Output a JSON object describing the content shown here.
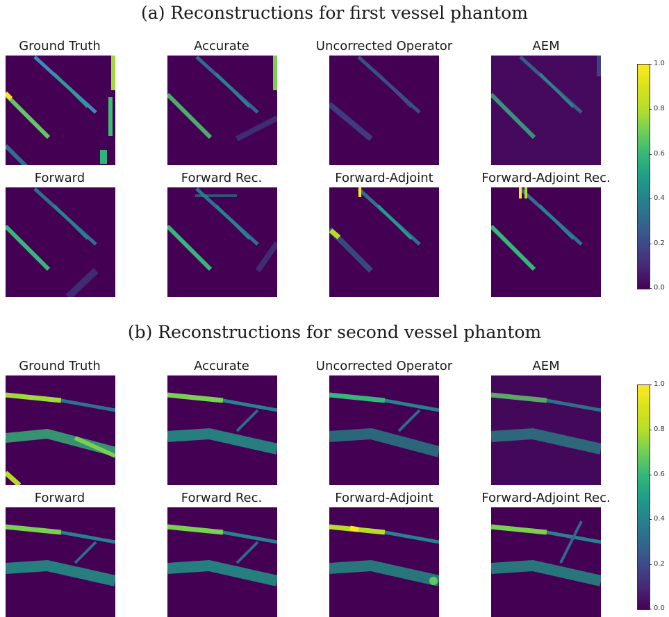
{
  "sections": [
    {
      "title": "(a) Reconstructions for first vessel phantom",
      "panels": [
        "Ground Truth",
        "Accurate",
        "Uncorrected Operator",
        "AEM",
        "Forward",
        "Forward Rec.",
        "Forward-Adjoint",
        "Forward-Adjoint Rec."
      ]
    },
    {
      "title": "(b) Reconstructions for second vessel phantom",
      "panels": [
        "Ground Truth",
        "Accurate",
        "Uncorrected Operator",
        "AEM",
        "Forward",
        "Forward Rec.",
        "Forward-Adjoint",
        "Forward-Adjoint Rec."
      ]
    }
  ],
  "colorbar": {
    "colormap": "viridis",
    "ticks": [
      "1.0",
      "0.8",
      "0.6",
      "0.4",
      "0.2",
      "0.0"
    ]
  },
  "colors": {
    "background": "#440154",
    "mid": "#21918c",
    "high": "#5ec962",
    "peak": "#fde725"
  }
}
